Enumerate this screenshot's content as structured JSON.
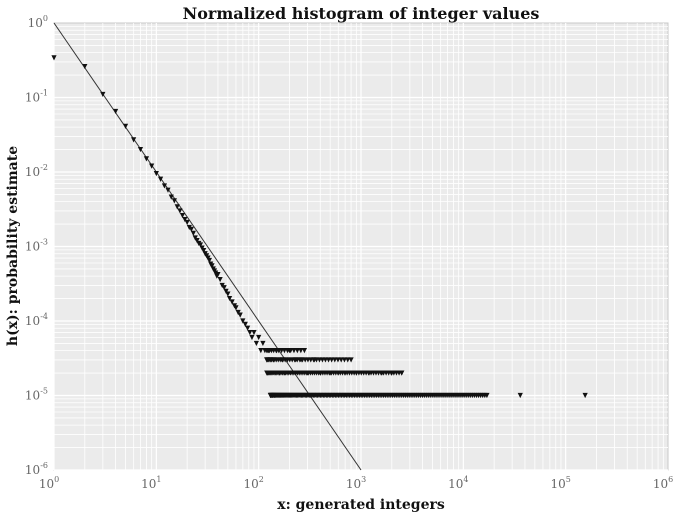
{
  "chart_data": {
    "type": "scatter",
    "title": "Normalized histogram of integer values",
    "xlabel": "x: generated integers",
    "ylabel": "h(x): probability estimate",
    "xscale": "log",
    "yscale": "log",
    "xlim": [
      1,
      1000000
    ],
    "ylim": [
      1e-06,
      1
    ],
    "grid": true,
    "xticks": [
      {
        "base": "10",
        "exp": "0",
        "value": 1
      },
      {
        "base": "10",
        "exp": "1",
        "value": 10
      },
      {
        "base": "10",
        "exp": "2",
        "value": 100
      },
      {
        "base": "10",
        "exp": "3",
        "value": 1000
      },
      {
        "base": "10",
        "exp": "4",
        "value": 10000
      },
      {
        "base": "10",
        "exp": "5",
        "value": 100000
      },
      {
        "base": "10",
        "exp": "6",
        "value": 1000000
      }
    ],
    "yticks": [
      {
        "base": "10",
        "exp": "0",
        "value": 1
      },
      {
        "base": "10",
        "exp": "-1",
        "value": 0.1
      },
      {
        "base": "10",
        "exp": "-2",
        "value": 0.01
      },
      {
        "base": "10",
        "exp": "-3",
        "value": 0.001
      },
      {
        "base": "10",
        "exp": "-4",
        "value": 0.0001
      },
      {
        "base": "10",
        "exp": "-5",
        "value": 1e-05
      },
      {
        "base": "10",
        "exp": "-6",
        "value": 1e-06
      }
    ],
    "colors": {
      "background": "#ebebeb",
      "grid": "#ffffff",
      "marker": "#111111",
      "line": "#333333"
    },
    "series": [
      {
        "kind": "fit-line",
        "x": [
          1,
          1000
        ],
        "y": [
          1,
          1e-06
        ]
      },
      {
        "kind": "points",
        "marker": "triangle-down",
        "points": [
          [
            1,
            0.34
          ],
          [
            2,
            0.26
          ],
          [
            3,
            0.11
          ],
          [
            4,
            0.065
          ],
          [
            5,
            0.041
          ],
          [
            6,
            0.027
          ],
          [
            7,
            0.02
          ],
          [
            8,
            0.015
          ],
          [
            9,
            0.012
          ],
          [
            10,
            0.0095
          ],
          [
            11,
            0.008
          ],
          [
            12,
            0.0065
          ],
          [
            13,
            0.0057
          ],
          [
            14,
            0.0046
          ],
          [
            15,
            0.0041
          ],
          [
            16,
            0.0034
          ],
          [
            17,
            0.003
          ],
          [
            18,
            0.0026
          ],
          [
            19,
            0.0023
          ],
          [
            20,
            0.0021
          ],
          [
            21,
            0.0018
          ],
          [
            22,
            0.0017
          ],
          [
            23,
            0.0015
          ],
          [
            24,
            0.0013
          ],
          [
            25,
            0.0012
          ],
          [
            26,
            0.0011
          ],
          [
            27,
            0.00105
          ],
          [
            28,
            0.00095
          ],
          [
            29,
            0.00088
          ],
          [
            30,
            0.0008
          ],
          [
            31,
            0.00075
          ],
          [
            32,
            0.0007
          ],
          [
            33,
            0.00065
          ],
          [
            34,
            0.00058
          ],
          [
            35,
            0.00055
          ],
          [
            36,
            0.0005
          ],
          [
            37,
            0.00047
          ],
          [
            38,
            0.00044
          ],
          [
            39,
            0.0004
          ],
          [
            40,
            0.00042
          ],
          [
            42,
            0.00036
          ],
          [
            44,
            0.0003
          ],
          [
            46,
            0.00028
          ],
          [
            48,
            0.00025
          ],
          [
            50,
            0.00023
          ],
          [
            52,
            0.0002
          ],
          [
            55,
            0.00018
          ],
          [
            58,
            0.00016
          ],
          [
            60,
            0.00015
          ],
          [
            63,
            0.00013
          ],
          [
            66,
            0.00012
          ],
          [
            70,
            0.0001
          ],
          [
            74,
            9e-05
          ],
          [
            78,
            8e-05
          ],
          [
            82,
            7e-05
          ],
          [
            86,
            6e-05
          ],
          [
            90,
            7e-05
          ],
          [
            95,
            5e-05
          ],
          [
            100,
            6e-05
          ],
          [
            105,
            4e-05
          ],
          [
            110,
            5e-05
          ],
          [
            115,
            4e-05
          ],
          [
            120,
            3e-05
          ],
          [
            125,
            4e-05
          ],
          [
            130,
            3e-05
          ],
          [
            140,
            3e-05
          ],
          [
            150,
            4e-05
          ],
          [
            160,
            2e-05
          ],
          [
            170,
            3e-05
          ],
          [
            180,
            2e-05
          ],
          [
            200,
            4e-05
          ],
          [
            230,
            3e-05
          ],
          [
            260,
            3e-05
          ],
          [
            300,
            2e-05
          ],
          [
            350,
            3e-05
          ],
          [
            400,
            2e-05
          ],
          [
            500,
            2e-05
          ],
          [
            600,
            2e-05
          ],
          [
            700,
            2e-05
          ],
          [
            900,
            2e-05
          ],
          [
            1200,
            2e-05
          ],
          [
            1600,
            2e-05
          ],
          [
            2000,
            2e-05
          ],
          [
            2500,
            2e-05
          ],
          [
            36000,
            1e-05
          ],
          [
            155000,
            1e-05
          ]
        ]
      },
      {
        "kind": "points",
        "marker": "triangle-down",
        "description_rows": "dense horizontal bands of singleton counts",
        "bands": [
          {
            "y": 1e-05,
            "x_from": 130,
            "x_to": 17000,
            "count": 140
          },
          {
            "y": 2e-05,
            "x_from": 120,
            "x_to": 2500,
            "count": 70
          },
          {
            "y": 3e-05,
            "x_from": 120,
            "x_to": 800,
            "count": 35
          },
          {
            "y": 4e-05,
            "x_from": 120,
            "x_to": 280,
            "count": 15
          }
        ]
      }
    ]
  }
}
